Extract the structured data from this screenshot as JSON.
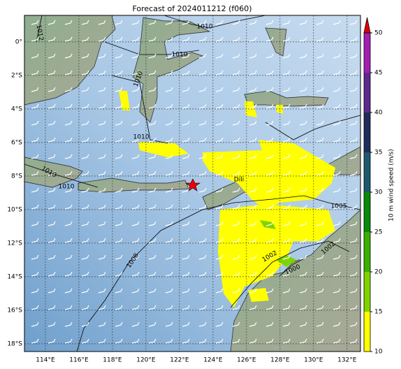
{
  "map": {
    "title": "Forecast of 2024011212 (f060)",
    "lonlim": [
      112.75,
      132.8
    ],
    "latlim": [
      -18.46,
      1.58
    ],
    "xticks": [
      {
        "value": 114,
        "label": "114°E"
      },
      {
        "value": 116,
        "label": "116°E"
      },
      {
        "value": 118,
        "label": "118°E"
      },
      {
        "value": 120,
        "label": "120°E"
      },
      {
        "value": 122,
        "label": "122°E"
      },
      {
        "value": 124,
        "label": "124°E"
      },
      {
        "value": 126,
        "label": "126°E"
      },
      {
        "value": 128,
        "label": "128°E"
      },
      {
        "value": 130,
        "label": "130°E"
      },
      {
        "value": 132,
        "label": "132°E"
      }
    ],
    "yticks": [
      {
        "value": 0,
        "label": "0°"
      },
      {
        "value": -2,
        "label": "2°S"
      },
      {
        "value": -4,
        "label": "4°S"
      },
      {
        "value": -6,
        "label": "6°S"
      },
      {
        "value": -8,
        "label": "8°S"
      },
      {
        "value": -10,
        "label": "10°S"
      },
      {
        "value": -12,
        "label": "12°S"
      },
      {
        "value": -14,
        "label": "14°S"
      },
      {
        "value": -16,
        "label": "16°S"
      },
      {
        "value": -18,
        "label": "18°S"
      }
    ],
    "grid": true,
    "contour_labels": [
      "1012",
      "1010",
      "1010",
      "1010",
      "1010",
      "1010",
      "1010",
      "1005",
      "1008",
      "1002",
      "1000",
      "1002"
    ],
    "place_label": "Dili",
    "colorbar": {
      "label": "10 m wind speed (m/s)",
      "lim": [
        10,
        50
      ],
      "ticks": [
        10,
        15,
        20,
        25,
        30,
        35,
        40,
        45,
        50
      ],
      "colors": [
        "#ffff00",
        "#7fd400",
        "#3cb000",
        "#0a8a0a",
        "#1d5a70",
        "#1f2d5c",
        "#5e2a8e",
        "#a21fb0"
      ],
      "extend_color": "#e00000"
    }
  }
}
